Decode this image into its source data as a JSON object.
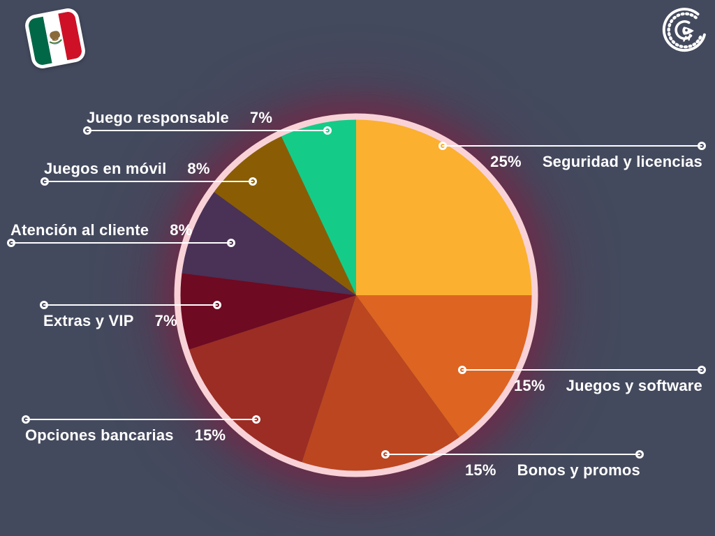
{
  "page": {
    "background_color": "#444A5E",
    "text_color": "#FFFFFF"
  },
  "header": {
    "flag_icon": "mexico-flag",
    "flag_stripe_colors": [
      "#006847",
      "#FFFFFF",
      "#CE1126"
    ],
    "logo_icon": "curled-iguana",
    "logo_color": "#FFFFFF"
  },
  "chart_data": {
    "type": "pie",
    "title": "",
    "start_angle_deg": 0,
    "direction": "clockwise",
    "ring_color": "#F9D2D8",
    "glow_color": "#851E3E",
    "legend_position": "callout-labels",
    "slices": [
      {
        "label": "Seguridad y licencias",
        "value": 25,
        "pct": "25%",
        "color": "#FBB030"
      },
      {
        "label": "Juegos y software",
        "value": 15,
        "pct": "15%",
        "color": "#DD6521"
      },
      {
        "label": "Bonos y promos",
        "value": 15,
        "pct": "15%",
        "color": "#BC4620"
      },
      {
        "label": "Opciones bancarias",
        "value": 15,
        "pct": "15%",
        "color": "#9C2D24"
      },
      {
        "label": "Extras y VIP",
        "value": 7,
        "pct": "7%",
        "color": "#6E0A22"
      },
      {
        "label": "Atención al cliente",
        "value": 8,
        "pct": "8%",
        "color": "#4A3156"
      },
      {
        "label": "Juegos en móvil",
        "value": 8,
        "pct": "8%",
        "color": "#8A5D04"
      },
      {
        "label": "Juego responsable",
        "value": 7,
        "pct": "7%",
        "color": "#14CC87"
      }
    ]
  }
}
